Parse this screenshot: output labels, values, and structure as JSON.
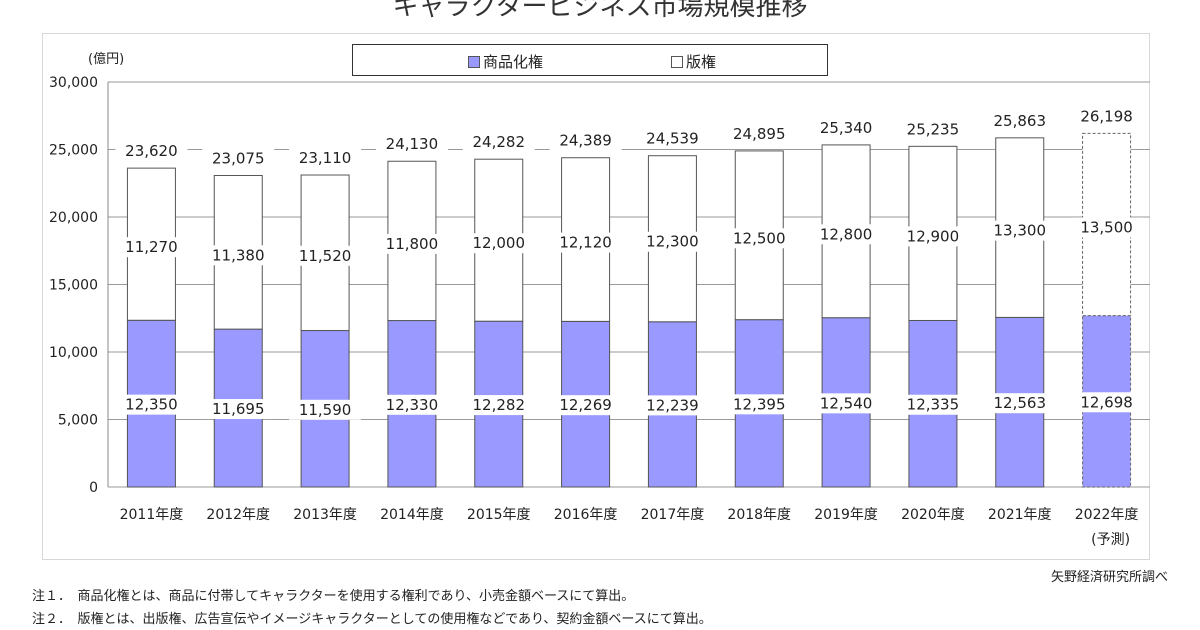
{
  "chart_data": {
    "type": "bar",
    "stacked": true,
    "title": "キャラクタービジネス市場規模推移",
    "unit_label": "(億円)",
    "categories": [
      "2011年度",
      "2012年度",
      "2013年度",
      "2014年度",
      "2015年度",
      "2016年度",
      "2017年度",
      "2018年度",
      "2019年度",
      "2020年度",
      "2021年度",
      "2022年度"
    ],
    "category_sublabels": {
      "2022年度": "(予測)"
    },
    "series": [
      {
        "name": "商品化権",
        "color": "#9999ff",
        "values": [
          12350,
          11695,
          11590,
          12330,
          12282,
          12269,
          12239,
          12395,
          12540,
          12335,
          12563,
          12698
        ]
      },
      {
        "name": "版権",
        "color": "#ffffff",
        "values": [
          11270,
          11380,
          11520,
          11800,
          12000,
          12120,
          12300,
          12500,
          12800,
          12900,
          13300,
          13500
        ]
      }
    ],
    "totals": [
      23620,
      23075,
      23110,
      24130,
      24282,
      24389,
      24539,
      24895,
      25340,
      25235,
      25863,
      26198
    ],
    "ylim": [
      0,
      30000
    ],
    "yticks": [
      0,
      5000,
      10000,
      15000,
      20000,
      25000,
      30000
    ],
    "ytick_labels": [
      "0",
      "5,000",
      "10,000",
      "15,000",
      "20,000",
      "25,000",
      "30,000"
    ],
    "grid": true,
    "legend_position": "top",
    "forecast_category": "2022年度"
  },
  "source": "矢野経済研究所調べ",
  "notes": [
    "注１．　商品化権とは、商品に付帯してキャラクターを使用する権利であり、小売金額ベースにて算出。",
    "注２．　版権とは、出版権、広告宣伝やイメージキャラクターとしての使用権などであり、契約金額ベースにて算出。"
  ]
}
